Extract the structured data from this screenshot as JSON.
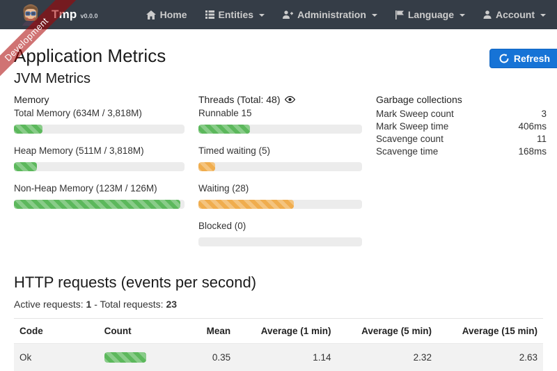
{
  "brand": {
    "name": "Tmp",
    "version": "v0.0.0"
  },
  "ribbon": {
    "label": "Development"
  },
  "navbar": {
    "items": [
      {
        "label": "Home",
        "icon": "home-icon",
        "caret": false
      },
      {
        "label": "Entities",
        "icon": "list-icon",
        "caret": true
      },
      {
        "label": "Administration",
        "icon": "user-plus-icon",
        "caret": true
      },
      {
        "label": "Language",
        "icon": "flag-icon",
        "caret": true
      },
      {
        "label": "Account",
        "icon": "user-icon",
        "caret": true
      }
    ]
  },
  "page": {
    "title": "Application Metrics",
    "refresh_label": "Refresh"
  },
  "jvm": {
    "title": "JVM Metrics",
    "memory": {
      "title": "Memory",
      "items": [
        {
          "label": "Total Memory (634M / 3,818M)",
          "value": 634,
          "max": 3818,
          "percent": 16.6,
          "color": "green"
        },
        {
          "label": "Heap Memory (511M / 3,818M)",
          "value": 511,
          "max": 3818,
          "percent": 13.4,
          "color": "green"
        },
        {
          "label": "Non-Heap Memory (123M / 126M)",
          "value": 123,
          "max": 126,
          "percent": 97.6,
          "color": "green"
        }
      ]
    },
    "threads": {
      "title": "Threads (Total: 48)",
      "total": 48,
      "items": [
        {
          "label": "Runnable 15",
          "value": 15,
          "max": 48,
          "percent": 31.3,
          "color": "green"
        },
        {
          "label": "Timed waiting (5)",
          "value": 5,
          "max": 48,
          "percent": 10.4,
          "color": "orange"
        },
        {
          "label": "Waiting (28)",
          "value": 28,
          "max": 48,
          "percent": 58.3,
          "color": "orange"
        },
        {
          "label": "Blocked (0)",
          "value": 0,
          "max": 48,
          "percent": 0,
          "color": "green"
        }
      ]
    },
    "gc": {
      "title": "Garbage collections",
      "rows": [
        {
          "label": "Mark Sweep count",
          "value": "3"
        },
        {
          "label": "Mark Sweep time",
          "value": "406ms"
        },
        {
          "label": "Scavenge count",
          "value": "11"
        },
        {
          "label": "Scavenge time",
          "value": "168ms"
        }
      ]
    }
  },
  "http": {
    "title": "HTTP requests (events per second)",
    "active_label": "Active requests:",
    "active_value": "1",
    "separator": "-",
    "total_label": "Total requests:",
    "total_value": "23",
    "table": {
      "headers": [
        "Code",
        "Count",
        "Mean",
        "Average (1 min)",
        "Average (5 min)",
        "Average (15 min)"
      ],
      "rows": [
        {
          "code": "Ok",
          "count": 23,
          "count_percent": 100,
          "mean": "0.35",
          "avg1": "1.14",
          "avg5": "2.32",
          "avg15": "2.63"
        }
      ]
    }
  },
  "colors": {
    "navbar_bg": "#353d47",
    "ribbon_red": "rgba(170,0,0,0.55)",
    "accent_blue": "#1673d6",
    "bar_green": "#5cb85c",
    "bar_orange": "#f0ad4e",
    "track_gray": "#ececec",
    "row_stripe": "#f2f2f2"
  }
}
